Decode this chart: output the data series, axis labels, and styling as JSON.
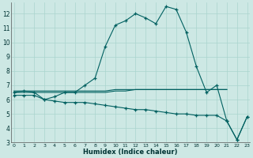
{
  "xlabel": "Humidex (Indice chaleur)",
  "bg_color": "#cde8e4",
  "grid_color": "#aad4ce",
  "line_color": "#006060",
  "curve_x": [
    0,
    1,
    2,
    3,
    4,
    5,
    6,
    7,
    8,
    9,
    10,
    11,
    12,
    13,
    14,
    15,
    16,
    17,
    18,
    19,
    20,
    21,
    22,
    23
  ],
  "curve_y": [
    6.5,
    6.6,
    6.5,
    6.0,
    6.2,
    6.5,
    6.5,
    7.0,
    7.5,
    9.7,
    11.2,
    11.5,
    12.0,
    11.7,
    11.3,
    12.5,
    12.3,
    10.7,
    8.3,
    6.5,
    7.0,
    4.5,
    3.2,
    4.8
  ],
  "flat1_x": [
    0,
    1,
    2,
    3,
    4,
    5,
    6,
    7,
    8,
    9,
    10,
    11,
    12,
    13,
    14,
    15,
    16,
    17,
    18,
    19,
    20,
    21
  ],
  "flat1_y": [
    6.6,
    6.6,
    6.6,
    6.6,
    6.6,
    6.6,
    6.6,
    6.6,
    6.6,
    6.6,
    6.7,
    6.7,
    6.7,
    6.7,
    6.7,
    6.7,
    6.7,
    6.7,
    6.7,
    6.7,
    6.7,
    6.7
  ],
  "flat2_x": [
    0,
    1,
    2,
    3,
    4,
    5,
    6,
    7,
    8,
    9,
    10,
    11,
    12,
    13,
    14,
    15,
    16,
    17,
    18,
    19,
    20,
    21
  ],
  "flat2_y": [
    6.5,
    6.5,
    6.5,
    6.5,
    6.5,
    6.5,
    6.5,
    6.5,
    6.5,
    6.5,
    6.6,
    6.6,
    6.7,
    6.7,
    6.7,
    6.7,
    6.7,
    6.7,
    6.7,
    6.7,
    6.7,
    6.7
  ],
  "decline_x": [
    0,
    1,
    2,
    3,
    4,
    5,
    6,
    7,
    8,
    9,
    10,
    11,
    12,
    13,
    14,
    15,
    16,
    17,
    18,
    19,
    20,
    21,
    22,
    23
  ],
  "decline_y": [
    6.3,
    6.3,
    6.3,
    6.0,
    5.9,
    5.8,
    5.8,
    5.8,
    5.7,
    5.6,
    5.5,
    5.4,
    5.3,
    5.3,
    5.2,
    5.1,
    5.0,
    5.0,
    4.9,
    4.9,
    4.9,
    4.5,
    3.2,
    4.8
  ],
  "ylim": [
    3,
    12.8
  ],
  "xlim": [
    -0.3,
    23.3
  ],
  "yticks": [
    3,
    4,
    5,
    6,
    7,
    8,
    9,
    10,
    11,
    12
  ],
  "xticks": [
    0,
    1,
    2,
    3,
    4,
    5,
    6,
    7,
    8,
    9,
    10,
    11,
    12,
    13,
    14,
    15,
    16,
    17,
    18,
    19,
    20,
    21,
    22,
    23
  ]
}
